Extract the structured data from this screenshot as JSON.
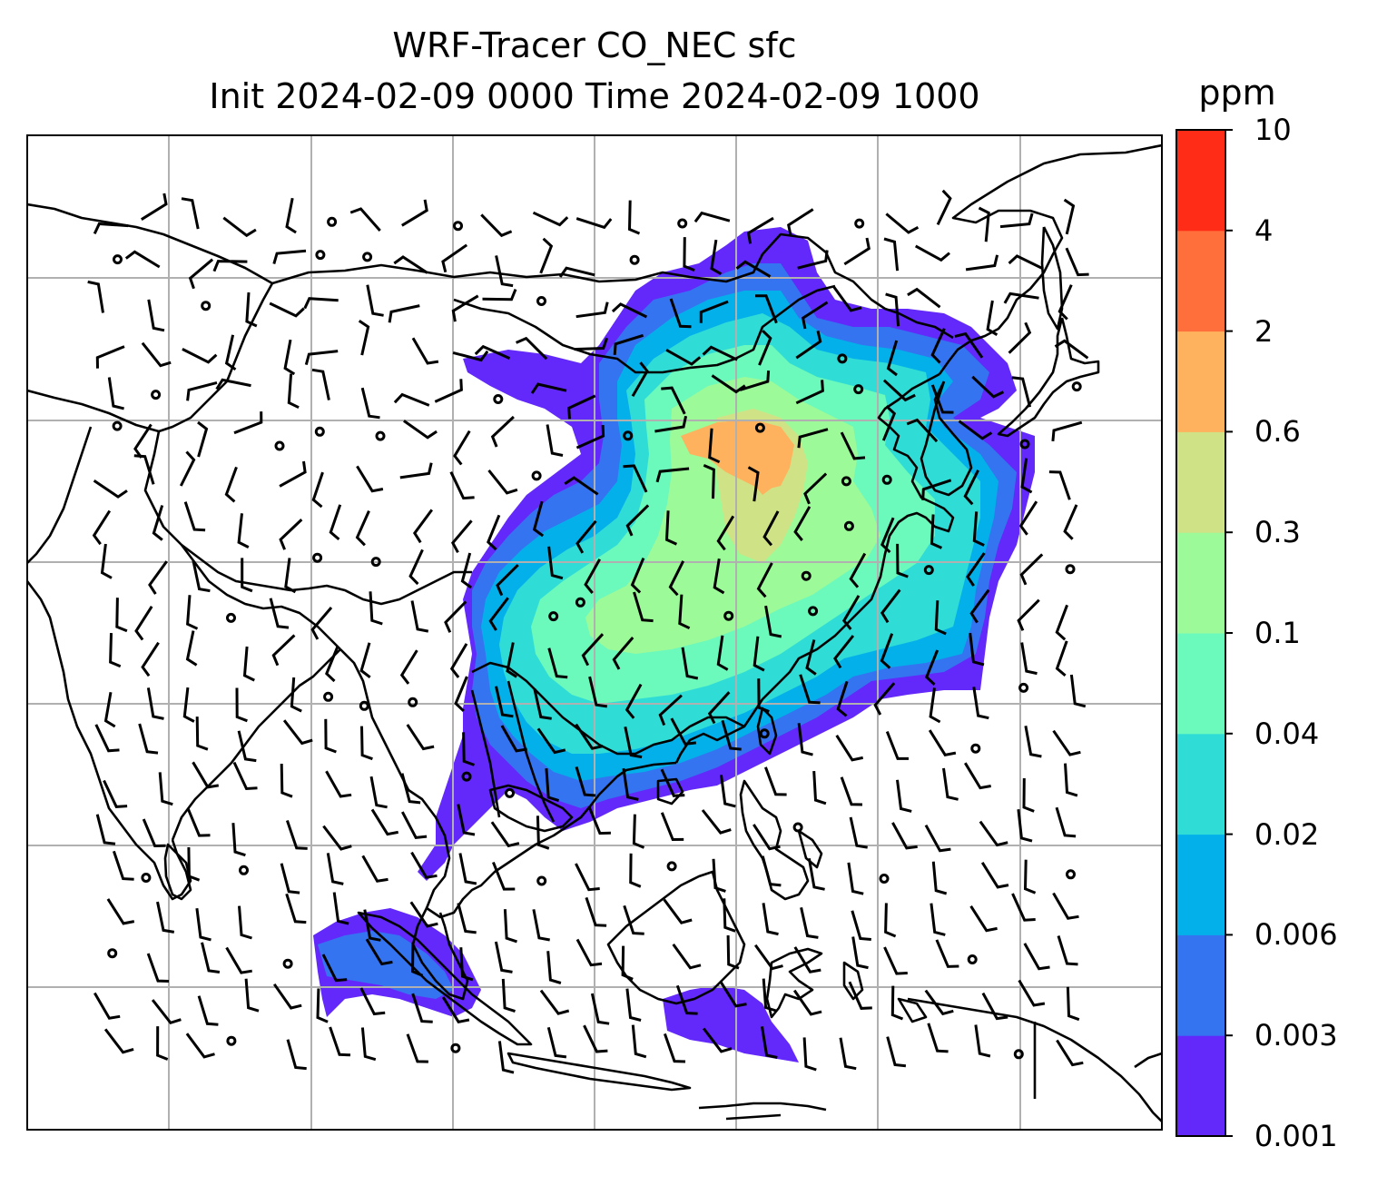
{
  "title": {
    "line1": "WRF-Tracer CO_NEC sfc",
    "line2": "Init 2024-02-09 0000 Time 2024-02-09 1000"
  },
  "colorbar": {
    "unit": "ppm",
    "levels": [
      "0.001",
      "0.003",
      "0.006",
      "0.02",
      "0.04",
      "0.1",
      "0.3",
      "0.6",
      "2",
      "4",
      "10"
    ],
    "colors": [
      "#6229fa",
      "#3574f0",
      "#04b0ea",
      "#30ddd6",
      "#6cf9bc",
      "#9dfa99",
      "#d0e286",
      "#feb25e",
      "#ff6f3c",
      "#ff2d17"
    ]
  },
  "map": {
    "region": "East and Southeast Asia",
    "variable": "CO_NEC surface tracer concentration",
    "overlay": "wind barbs",
    "graticule_color": "#b0b0b0",
    "coastline_color": "#000000"
  }
}
